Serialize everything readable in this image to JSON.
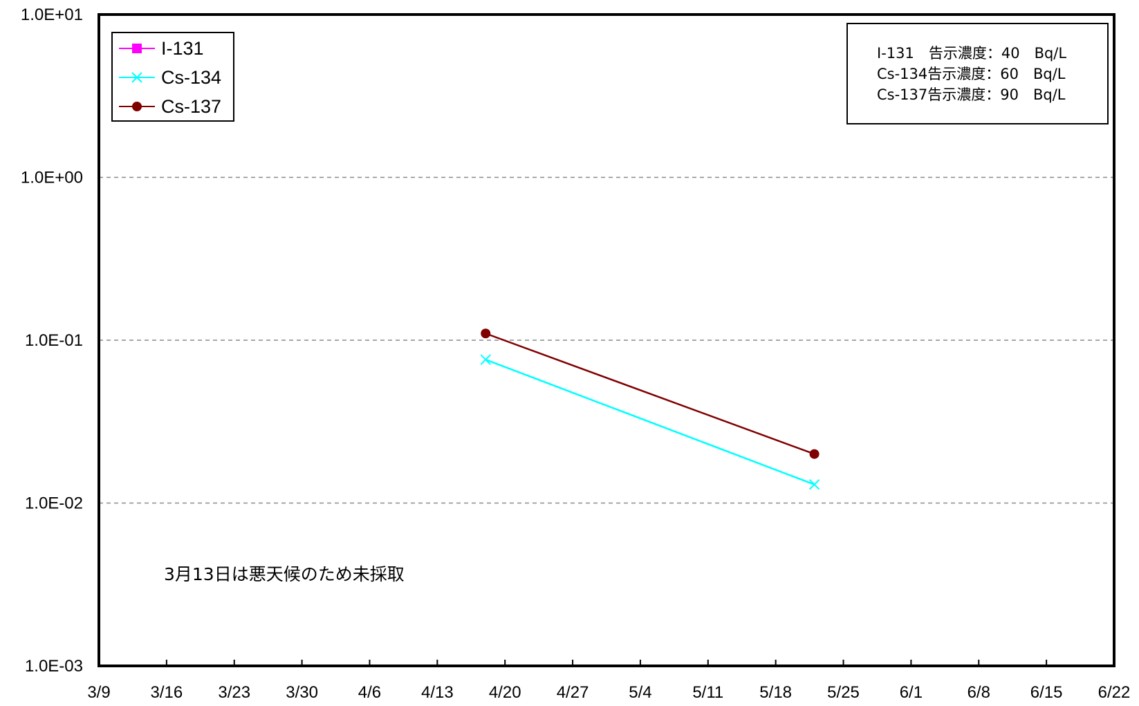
{
  "chart_data": {
    "type": "line",
    "title": "",
    "xlabel": "",
    "ylabel": "",
    "x_ticks": [
      "3/9",
      "3/16",
      "3/23",
      "3/30",
      "4/6",
      "4/13",
      "4/20",
      "4/27",
      "5/4",
      "5/11",
      "5/18",
      "5/25",
      "6/1",
      "6/8",
      "6/15",
      "6/22"
    ],
    "xlim": [
      "3/9",
      "6/22"
    ],
    "y_scale": "log",
    "y_ticks": [
      "1.0E-03",
      "1.0E-02",
      "1.0E-01",
      "1.0E+00",
      "1.0E+01"
    ],
    "ylim": [
      0.001,
      10
    ],
    "grid": "horizontal dashed at each decade",
    "legend_position": "top-left",
    "series": [
      {
        "name": "I-131",
        "color": "#ff00ff",
        "marker": "square",
        "points": []
      },
      {
        "name": "Cs-134",
        "color": "#00ffff",
        "marker": "x",
        "points": [
          {
            "x": "4/18",
            "y": 0.076
          },
          {
            "x": "5/22",
            "y": 0.013
          }
        ]
      },
      {
        "name": "Cs-137",
        "color": "#800000",
        "marker": "circle",
        "points": [
          {
            "x": "4/18",
            "y": 0.11
          },
          {
            "x": "5/22",
            "y": 0.02
          }
        ]
      }
    ],
    "note_box": {
      "lines": [
        "I-131　告示濃度：40　Bq/L",
        "Cs-134告示濃度：60　Bq/L",
        "Cs-137告示濃度：90　Bq/L"
      ]
    },
    "annotation": "3月13日は悪天候のため未採取"
  }
}
